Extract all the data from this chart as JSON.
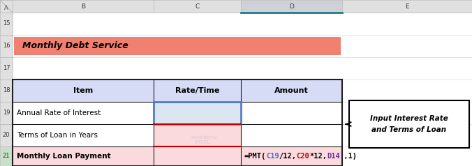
{
  "title": "Monthly Debt Service",
  "title_bg": "#F08070",
  "header_bg": "#D6DCF5",
  "formula_parts": [
    {
      "text": "=PMT(",
      "color": "#000000"
    },
    {
      "text": "C19",
      "color": "#4472C4"
    },
    {
      "text": "/12,",
      "color": "#000000"
    },
    {
      "text": "C20",
      "color": "#C00000"
    },
    {
      "text": "*12,",
      "color": "#000000"
    },
    {
      "text": "D14",
      "color": "#7030A0"
    },
    {
      "text": ",,1)",
      "color": "#000000"
    }
  ],
  "callout_text": "Input Interest Rate\nand Terms of Loan",
  "fig_bg": "#FFFFFF",
  "col_header_text": [
    "A",
    "B",
    "C",
    "D",
    "E"
  ],
  "row_numbers": [
    "15",
    "16",
    "17",
    "18",
    "19",
    "20",
    "21",
    ""
  ],
  "col_hdr_bg": "#E0E0E0",
  "col_d_bg": "#D0D0D8",
  "row_num_bg": "#E0E0E0",
  "cell_bg": "#FFFFFF",
  "pink_bg": "#FADADD",
  "blue_cell_bg": "#DCE6F1",
  "c19_border": "#4472C4",
  "red_border": "#C00000",
  "table_border": "#1F1F1F"
}
